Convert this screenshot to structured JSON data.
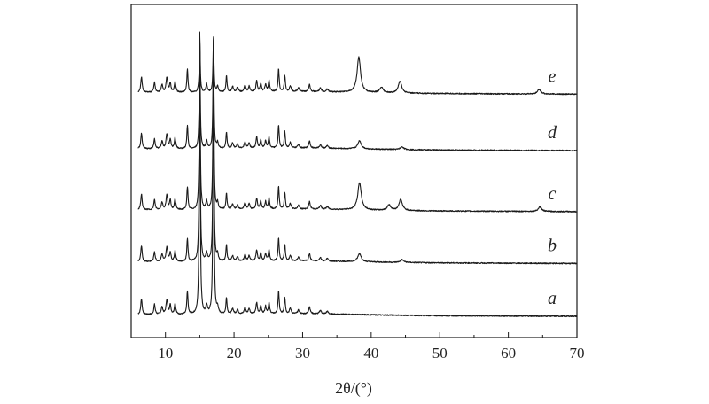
{
  "chart_data": {
    "type": "line",
    "xlabel": "2θ/(°)",
    "ylabel": "",
    "xlim": [
      5,
      70
    ],
    "xticks": [
      10,
      20,
      30,
      40,
      50,
      60,
      70
    ],
    "xtick_labels": [
      "10",
      "20",
      "30",
      "40",
      "50",
      "60",
      "70"
    ],
    "grid": false,
    "legend": "none",
    "ylim": [
      0,
      330
    ],
    "common_peaks": [
      {
        "x": 6.5,
        "h": 17,
        "w": 0.12
      },
      {
        "x": 8.4,
        "h": 11,
        "w": 0.12
      },
      {
        "x": 9.5,
        "h": 8,
        "w": 0.14
      },
      {
        "x": 10.2,
        "h": 16,
        "w": 0.14
      },
      {
        "x": 10.7,
        "h": 10,
        "w": 0.12
      },
      {
        "x": 11.4,
        "h": 12,
        "w": 0.12
      },
      {
        "x": 13.2,
        "h": 25,
        "w": 0.1
      },
      {
        "x": 15.0,
        "h": 25,
        "w": 0.08
      },
      {
        "x": 16.0,
        "h": 9,
        "w": 0.12
      },
      {
        "x": 17.0,
        "h": 25,
        "w": 0.08
      },
      {
        "x": 17.6,
        "h": 7,
        "w": 0.12
      },
      {
        "x": 18.9,
        "h": 18,
        "w": 0.1
      },
      {
        "x": 19.8,
        "h": 6,
        "w": 0.14
      },
      {
        "x": 20.5,
        "h": 5,
        "w": 0.14
      },
      {
        "x": 21.6,
        "h": 7,
        "w": 0.14
      },
      {
        "x": 22.2,
        "h": 6,
        "w": 0.14
      },
      {
        "x": 23.3,
        "h": 12,
        "w": 0.12
      },
      {
        "x": 23.9,
        "h": 9,
        "w": 0.12
      },
      {
        "x": 24.6,
        "h": 8,
        "w": 0.12
      },
      {
        "x": 25.1,
        "h": 12,
        "w": 0.12
      },
      {
        "x": 26.5,
        "h": 25,
        "w": 0.1
      },
      {
        "x": 27.4,
        "h": 18,
        "w": 0.1
      },
      {
        "x": 28.2,
        "h": 6,
        "w": 0.14
      },
      {
        "x": 29.4,
        "h": 4,
        "w": 0.16
      },
      {
        "x": 31.0,
        "h": 8,
        "w": 0.14
      },
      {
        "x": 32.6,
        "h": 4,
        "w": 0.16
      },
      {
        "x": 33.6,
        "h": 3,
        "w": 0.16
      }
    ],
    "series": [
      {
        "name": "a",
        "baseline": 0,
        "overrides": {
          "15.0": 310,
          "17.0": 300
        },
        "extra_peaks": []
      },
      {
        "name": "b",
        "baseline": 58,
        "overrides": {
          "15.0": 250,
          "17.0": 242
        },
        "extra_peaks": [
          {
            "x": 38.3,
            "h": 9,
            "w": 0.3
          },
          {
            "x": 44.5,
            "h": 3,
            "w": 0.3
          }
        ]
      },
      {
        "name": "c",
        "baseline": 115,
        "overrides": {
          "15.0": 193,
          "17.0": 186
        },
        "extra_peaks": [
          {
            "x": 38.3,
            "h": 30,
            "w": 0.3
          },
          {
            "x": 42.6,
            "h": 6,
            "w": 0.3
          },
          {
            "x": 44.3,
            "h": 12,
            "w": 0.3
          },
          {
            "x": 64.6,
            "h": 5,
            "w": 0.3
          }
        ]
      },
      {
        "name": "d",
        "baseline": 182,
        "overrides": {
          "15.0": 126,
          "17.0": 121
        },
        "extra_peaks": [
          {
            "x": 38.3,
            "h": 9,
            "w": 0.3
          },
          {
            "x": 44.5,
            "h": 3,
            "w": 0.3
          }
        ]
      },
      {
        "name": "e",
        "baseline": 244,
        "overrides": {
          "15.0": 64,
          "17.0": 60
        },
        "extra_peaks": [
          {
            "x": 38.2,
            "h": 39,
            "w": 0.3
          },
          {
            "x": 41.5,
            "h": 6,
            "w": 0.3
          },
          {
            "x": 44.2,
            "h": 13,
            "w": 0.3
          },
          {
            "x": 64.5,
            "h": 5,
            "w": 0.3
          }
        ]
      }
    ]
  }
}
